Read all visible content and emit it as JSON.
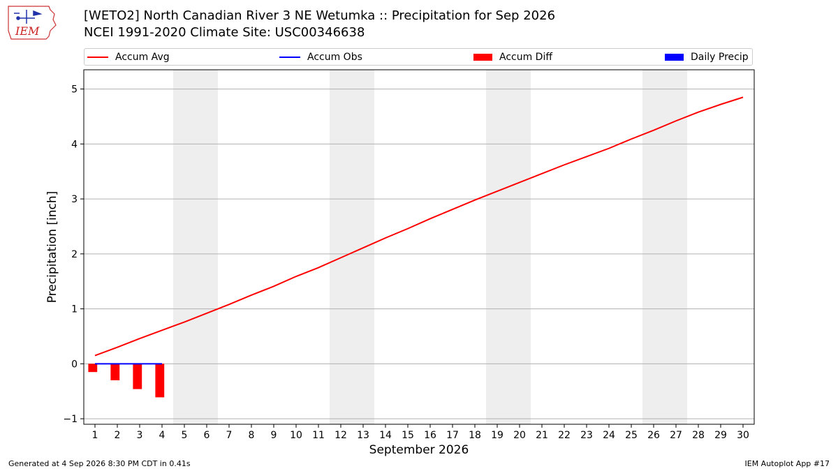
{
  "header": {
    "title_line1": "[WETO2] North Canadian River 3 NE Wetumka :: Precipitation for Sep 2026",
    "title_line2": "NCEI 1991-2020 Climate Site: USC00346638",
    "logo_text": "IEM"
  },
  "legend": {
    "items": [
      {
        "label": "Accum Avg",
        "kind": "line",
        "color": "#ff0000"
      },
      {
        "label": "Accum Obs",
        "kind": "line",
        "color": "#0000ff"
      },
      {
        "label": "Accum Diff",
        "kind": "box",
        "color": "#ff0000"
      },
      {
        "label": "Daily Precip",
        "kind": "box",
        "color": "#0000ff"
      }
    ]
  },
  "footer": {
    "left": "Generated at 4 Sep 2026 8:30 PM CDT in 0.41s",
    "right": "IEM Autoplot App #17"
  },
  "chart_data": {
    "type": "line",
    "xlabel": "September 2026",
    "ylabel": "Precipitation [inch]",
    "xlim": [
      0.5,
      30.5
    ],
    "ylim": [
      -1.1,
      5.35
    ],
    "yticks": [
      -1,
      0,
      1,
      2,
      3,
      4,
      5
    ],
    "xticks": [
      1,
      2,
      3,
      4,
      5,
      6,
      7,
      8,
      9,
      10,
      11,
      12,
      13,
      14,
      15,
      16,
      17,
      18,
      19,
      20,
      21,
      22,
      23,
      24,
      25,
      26,
      27,
      28,
      29,
      30
    ],
    "weekend_shading": [
      [
        5,
        6
      ],
      [
        12,
        13
      ],
      [
        19,
        20
      ],
      [
        26,
        27
      ]
    ],
    "grid": "horizontal",
    "colors": {
      "avg": "#ff0000",
      "obs": "#0000ff",
      "diff": "#ff0000",
      "daily": "#0000ff",
      "shade": "#eeeeee"
    },
    "series": [
      {
        "name": "Accum Avg",
        "x": [
          1,
          2,
          3,
          4,
          5,
          6,
          7,
          8,
          9,
          10,
          11,
          12,
          13,
          14,
          15,
          16,
          17,
          18,
          19,
          20,
          21,
          22,
          23,
          24,
          25,
          26,
          27,
          28,
          29,
          30
        ],
        "values": [
          0.15,
          0.3,
          0.46,
          0.61,
          0.76,
          0.92,
          1.08,
          1.25,
          1.41,
          1.59,
          1.75,
          1.93,
          2.11,
          2.29,
          2.46,
          2.64,
          2.81,
          2.98,
          3.14,
          3.3,
          3.46,
          3.62,
          3.77,
          3.92,
          4.09,
          4.25,
          4.42,
          4.58,
          4.72,
          4.85
        ]
      },
      {
        "name": "Accum Obs",
        "x": [
          1,
          2,
          3,
          4
        ],
        "values": [
          0,
          0,
          0,
          0
        ]
      },
      {
        "name": "Accum Diff",
        "x": [
          1,
          2,
          3,
          4
        ],
        "values": [
          -0.15,
          -0.3,
          -0.46,
          -0.61
        ]
      },
      {
        "name": "Daily Precip",
        "x": [
          1,
          2,
          3,
          4
        ],
        "values": [
          0,
          0,
          0,
          0
        ]
      }
    ]
  }
}
